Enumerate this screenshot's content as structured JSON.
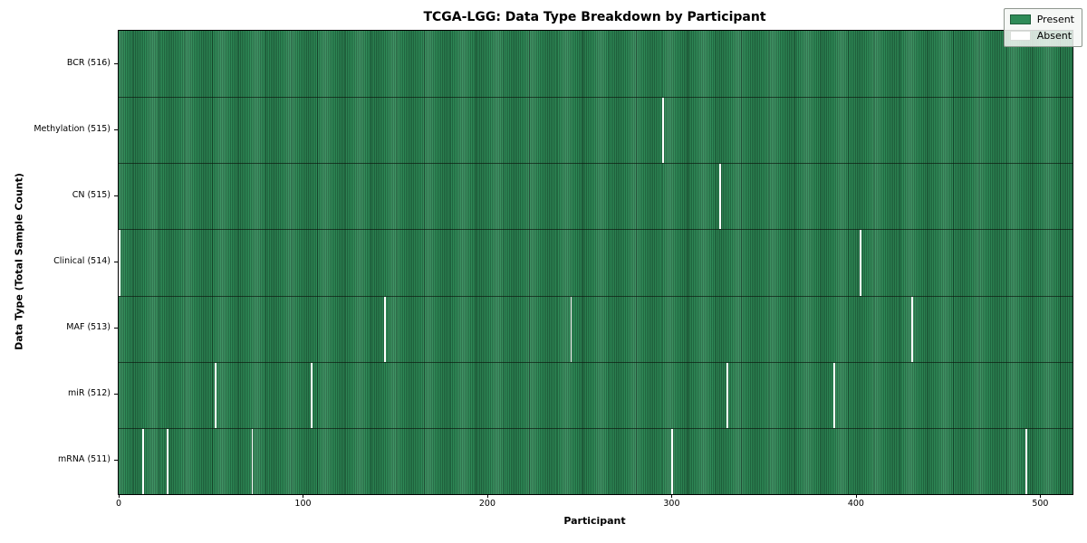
{
  "chart_data": {
    "type": "heatmap",
    "title": "TCGA-LGG: Data Type Breakdown by Participant",
    "xlabel": "Participant",
    "ylabel": "Data Type (Total Sample Count)",
    "x_ticks": [
      0,
      100,
      200,
      300,
      400,
      500
    ],
    "x_max": 517,
    "total_participants": 516,
    "grid": false,
    "legend_position": "upper right",
    "rows": [
      {
        "label": "BCR (516)",
        "data_type": "BCR",
        "sample_count": 516,
        "absent_participants": []
      },
      {
        "label": "Methylation (515)",
        "data_type": "Methylation",
        "sample_count": 515,
        "absent_participants": [
          295
        ]
      },
      {
        "label": "CN (515)",
        "data_type": "CN",
        "sample_count": 515,
        "absent_participants": [
          326
        ]
      },
      {
        "label": "Clinical (514)",
        "data_type": "Clinical",
        "sample_count": 514,
        "absent_participants": [
          0,
          402
        ]
      },
      {
        "label": "MAF (513)",
        "data_type": "MAF",
        "sample_count": 513,
        "absent_participants": [
          144,
          245,
          430
        ]
      },
      {
        "label": "miR (512)",
        "data_type": "miR",
        "sample_count": 512,
        "absent_participants": [
          52,
          104,
          330,
          388
        ]
      },
      {
        "label": "mRNA (511)",
        "data_type": "mRNA",
        "sample_count": 511,
        "absent_participants": [
          13,
          26,
          72,
          300,
          492
        ]
      }
    ],
    "legend": {
      "entries": [
        {
          "label": "Present",
          "color": "#2e8b57"
        },
        {
          "label": "Absent",
          "color": "#ffffff"
        }
      ]
    },
    "colors": {
      "present": "#2e8b57",
      "bar_edge": "#15432a",
      "absent": "#ffffff",
      "plot_border": "#000000",
      "legend_bg": "#f0f3f0"
    }
  }
}
